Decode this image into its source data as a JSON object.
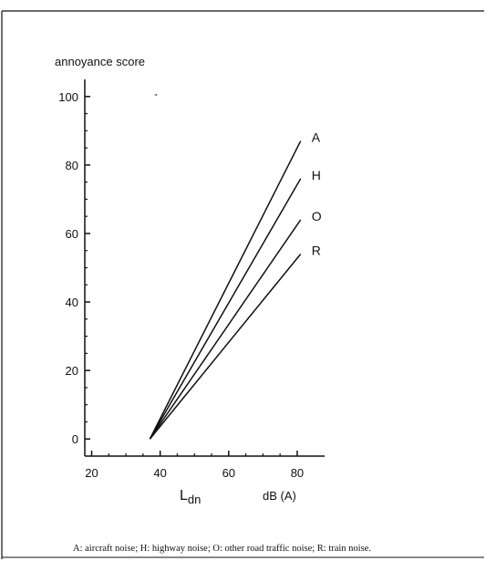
{
  "chart_data": {
    "type": "line",
    "ylabel": "annoyance score",
    "xlabel": "L",
    "xlabel_sub": "dn",
    "xunit": "dB (A)",
    "xlim": [
      18,
      88
    ],
    "ylim": [
      -5,
      105
    ],
    "xticks": [
      20,
      40,
      60,
      80
    ],
    "yticks": [
      0,
      20,
      40,
      60,
      80,
      100
    ],
    "grid": false,
    "series": [
      {
        "name": "A",
        "x": [
          37,
          81
        ],
        "y": [
          0,
          87
        ]
      },
      {
        "name": "H",
        "x": [
          37,
          81
        ],
        "y": [
          0,
          76
        ]
      },
      {
        "name": "O",
        "x": [
          37,
          81
        ],
        "y": [
          0,
          64
        ]
      },
      {
        "name": "R",
        "x": [
          37,
          81
        ],
        "y": [
          0,
          54
        ]
      }
    ]
  },
  "caption": "A: aircraft noise; H: highway noise; O: other road traffic noise; R: train noise.",
  "colors": {
    "ink": "#111111",
    "background": "#ffffff"
  }
}
